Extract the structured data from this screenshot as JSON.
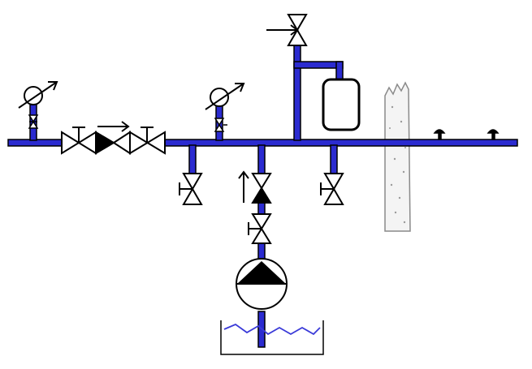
{
  "colors": {
    "pipe_fill": "#2b2bd0",
    "pipe_outline": "#000000",
    "water_line": "#3a3ad8",
    "wall_outline": "#8a8a8a",
    "background": "#ffffff"
  },
  "components": [
    {
      "name": "inlet-pipe",
      "icon": "pipe"
    },
    {
      "name": "pressure-gauge",
      "icon": "gauge-icon",
      "count": 2
    },
    {
      "name": "gate-valve",
      "icon": "valve-icon"
    },
    {
      "name": "check-valve",
      "icon": "check-valve-icon"
    },
    {
      "name": "pump",
      "icon": "centrifugal-pump-icon"
    },
    {
      "name": "expansion-tank",
      "icon": "tank-icon"
    },
    {
      "name": "water-reservoir",
      "icon": "reservoir-icon"
    },
    {
      "name": "wall",
      "icon": "wall-section-icon"
    },
    {
      "name": "faucet",
      "icon": "faucet-icon",
      "count": 2
    }
  ],
  "flow_arrows": [
    {
      "name": "flow-arrow-horizontal",
      "direction": "right"
    },
    {
      "name": "flow-arrow-vertical",
      "direction": "up"
    },
    {
      "name": "flow-arrow-top-valve",
      "direction": "right"
    }
  ]
}
